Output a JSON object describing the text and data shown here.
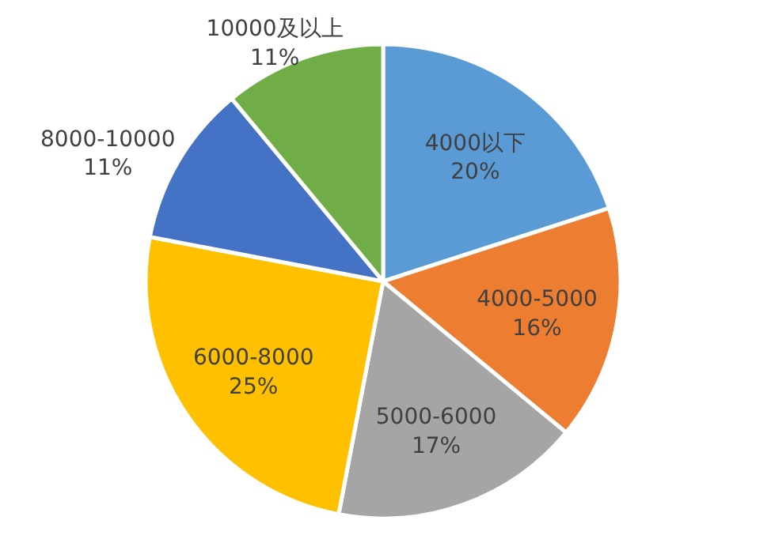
{
  "chart_data": {
    "type": "pie",
    "categories": [
      "4000以下",
      "4000-5000",
      "5000-6000",
      "6000-8000",
      "8000-10000",
      "10000及以上"
    ],
    "values": [
      20,
      16,
      17,
      25,
      11,
      11
    ],
    "colors": [
      "#5b9bd5",
      "#ed7d31",
      "#a5a5a5",
      "#ffc000",
      "#4472c4",
      "#70ad47"
    ],
    "value_labels": [
      "20%",
      "16%",
      "17%",
      "25%",
      "11%",
      "11%"
    ]
  }
}
